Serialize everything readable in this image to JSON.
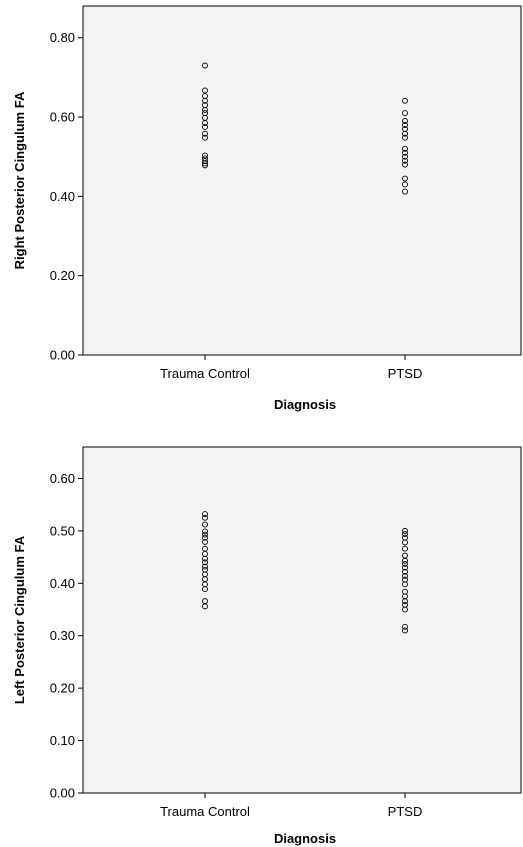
{
  "chart_data": [
    {
      "type": "scatter",
      "title": "",
      "xlabel": "Diagnosis",
      "ylabel": "Right Posterior Cingulum FA",
      "categories": [
        "Trauma Control",
        "PTSD"
      ],
      "ylim": [
        0,
        0.88
      ],
      "yticks": [
        "0.00",
        "0.20",
        "0.40",
        "0.60",
        "0.80"
      ],
      "ytick_values": [
        0,
        0.2,
        0.4,
        0.6,
        0.8
      ],
      "grid": false,
      "background": "#f2f3f2",
      "marker_color": "#000000",
      "series": [
        {
          "category": "Trauma Control",
          "values": [
            0.73,
            0.667,
            0.653,
            0.641,
            0.63,
            0.618,
            0.61,
            0.598,
            0.585,
            0.575,
            0.558,
            0.548,
            0.503,
            0.496,
            0.489,
            0.483,
            0.478
          ]
        },
        {
          "category": "PTSD",
          "values": [
            0.641,
            0.61,
            0.59,
            0.58,
            0.57,
            0.558,
            0.548,
            0.52,
            0.51,
            0.5,
            0.49,
            0.48,
            0.445,
            0.43,
            0.412
          ]
        }
      ]
    },
    {
      "type": "scatter",
      "title": "",
      "xlabel": "Diagnosis",
      "ylabel": "Left Posterior Cingulum FA",
      "categories": [
        "Trauma Control",
        "PTSD"
      ],
      "ylim": [
        0,
        0.66
      ],
      "yticks": [
        "0.00",
        "0.10",
        "0.20",
        "0.30",
        "0.40",
        "0.50",
        "0.60"
      ],
      "ytick_values": [
        0,
        0.1,
        0.2,
        0.3,
        0.4,
        0.5,
        0.6
      ],
      "grid": false,
      "background": "#f2f3f2",
      "marker_color": "#000000",
      "series": [
        {
          "category": "Trauma Control",
          "values": [
            0.532,
            0.525,
            0.512,
            0.499,
            0.493,
            0.487,
            0.479,
            0.466,
            0.456,
            0.447,
            0.44,
            0.432,
            0.426,
            0.417,
            0.408,
            0.398,
            0.389,
            0.366,
            0.356
          ]
        },
        {
          "category": "PTSD",
          "values": [
            0.5,
            0.494,
            0.487,
            0.478,
            0.466,
            0.453,
            0.443,
            0.437,
            0.43,
            0.422,
            0.414,
            0.407,
            0.398,
            0.384,
            0.375,
            0.366,
            0.359,
            0.35,
            0.317,
            0.31
          ]
        }
      ]
    }
  ]
}
